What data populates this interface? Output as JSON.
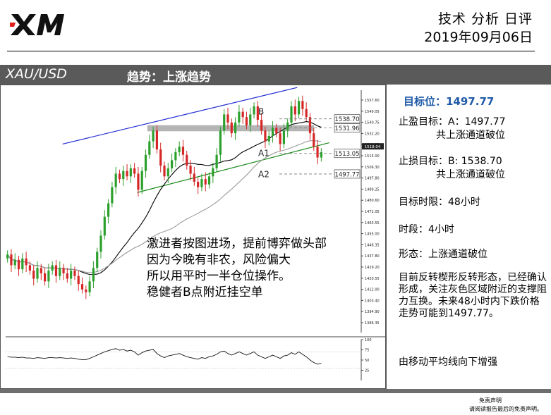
{
  "header": {
    "logo_text": "XM",
    "title": "技术 分析 日评",
    "date": "2019年09月06日"
  },
  "banner": {
    "symbol": "XAU/USD",
    "trend": "趋势：上涨趋势"
  },
  "chart_data": {
    "type": "candlestick",
    "ylim": [
      1380.0,
      1560.0
    ],
    "y_ticks": [
      "1557.60",
      "1549.05",
      "1540.75",
      "1532.20",
      "1523.55",
      "1515.00",
      "1506.30",
      "1497.80",
      "1489.25",
      "1480.60",
      "1472.05",
      "1463.55",
      "1455.00",
      "1446.35",
      "1437.80",
      "1429.20",
      "1420.55",
      "1412.00",
      "1403.40",
      "1394.90",
      "1386.35"
    ],
    "current_price_label": "1518.04",
    "rsi_ticks": [
      "100",
      "75",
      "50",
      "25"
    ],
    "price_labels": [
      {
        "text": "1538.70",
        "value": 1538.7
      },
      {
        "text": "1531.96",
        "value": 1531.96
      },
      {
        "text": "1513.05",
        "value": 1513.05
      },
      {
        "text": "1497.77",
        "value": 1497.77
      }
    ],
    "point_labels": [
      "B",
      "A1",
      "A2"
    ],
    "resistance_zone": [
      1529.5,
      1534.0
    ],
    "closes": [
      1438,
      1430,
      1434,
      1427,
      1435,
      1430,
      1426,
      1420,
      1428,
      1424,
      1418,
      1426,
      1430,
      1422,
      1428,
      1424,
      1420,
      1426,
      1422,
      1416,
      1412,
      1410,
      1418,
      1428,
      1440,
      1452,
      1466,
      1476,
      1488,
      1498,
      1494,
      1500,
      1496,
      1502,
      1498,
      1486,
      1500,
      1512,
      1522,
      1530,
      1516,
      1504,
      1496,
      1502,
      1508,
      1514,
      1518,
      1512,
      1504,
      1498,
      1492,
      1488,
      1494,
      1490,
      1496,
      1502,
      1512,
      1530,
      1542,
      1536,
      1528,
      1536,
      1544,
      1540,
      1534,
      1542,
      1548,
      1538,
      1530,
      1522,
      1526,
      1532,
      1528,
      1520,
      1530,
      1536,
      1548,
      1542,
      1552,
      1546,
      1540,
      1528,
      1518,
      1510,
      1514
    ],
    "channel_upper": [
      [
        0.16,
        1520.0
      ],
      [
        0.42,
        1546.0
      ],
      [
        0.82,
        1562.0
      ]
    ],
    "channel_lower": [
      [
        0.37,
        1484.0
      ],
      [
        0.6,
        1496.0
      ],
      [
        0.91,
        1521.0
      ]
    ],
    "rsi": [
      58,
      57,
      57,
      56,
      57,
      55,
      55,
      54,
      56,
      55,
      54,
      56,
      56,
      55,
      56,
      55,
      54,
      55,
      54,
      52,
      51,
      51,
      54,
      58,
      62,
      66,
      70,
      73,
      76,
      78,
      74,
      76,
      72,
      74,
      70,
      62,
      68,
      72,
      74,
      76,
      66,
      60,
      56,
      60,
      62,
      64,
      66,
      62,
      58,
      56,
      54,
      52,
      56,
      54,
      58,
      60,
      64,
      70,
      72,
      66,
      62,
      66,
      70,
      66,
      62,
      66,
      70,
      62,
      58,
      54,
      58,
      62,
      58,
      54,
      60,
      62,
      68,
      64,
      70,
      64,
      58,
      50,
      44,
      40,
      42
    ]
  },
  "chart_text": {
    "note_lines": [
      "激进者按图进场，提前博弈做头部",
      "因为今晚有非农，风险偏大",
      "所以用平时一半仓位操作。",
      "稳健者B点附近挂空单"
    ]
  },
  "sidebar": {
    "target": "目标位：1497.77",
    "tp_label": "止盈目标：A：1497.77",
    "tp_note": "共上涨通道破位",
    "sl_label": "止损目标：B: 1538.70",
    "sl_note": "共上涨通道破位",
    "horizon": "目标时限：48小时",
    "timeframe": "时段：4小时",
    "pattern": "形态：上涨通道破位",
    "analysis": "目前反转楔形反转形态，已经确认形成，关注灰色区域附近的支撑阻力互换。未来48小时内下跌价格走势可能到1497.77。",
    "ma_note": "由移动平均线向下增强"
  },
  "footer": {
    "disclaimer_title": "免责声明",
    "disclaimer_text": "请阅读报告最后的免责声明。"
  },
  "colors": {
    "bull": "#2ca02c",
    "bear": "#d62728",
    "channel_upper": "#1f2bd4",
    "channel_lower": "#1a8a1a",
    "banner": "#5a5a5a",
    "accent_blue": "#1f5ba8"
  }
}
